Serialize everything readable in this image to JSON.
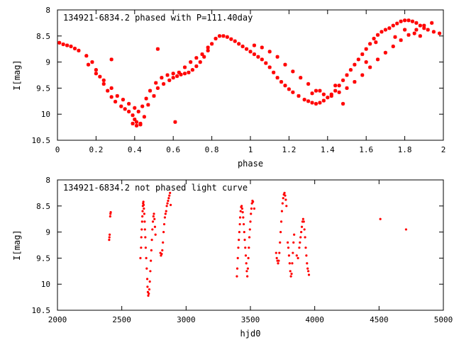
{
  "colors": {
    "points": "#ff0000",
    "axes": "#000000",
    "background": "#ffffff"
  },
  "chart_data": [
    {
      "type": "scatter",
      "title": "134921-6834.2 phased with P=111.40day",
      "xlabel": "phase",
      "ylabel": "I[mag]",
      "xlim": [
        0,
        2
      ],
      "ylim": [
        10.5,
        8
      ],
      "y_inverted": true,
      "grid": false,
      "marker": "star",
      "x_ticks": [
        "0",
        "0.2",
        "0.4",
        "0.6",
        "0.8",
        "1",
        "1.2",
        "1.4",
        "1.6",
        "1.8",
        "2"
      ],
      "y_ticks": [
        "8",
        "8.5",
        "9",
        "9.5",
        "10",
        "10.5"
      ],
      "x": [
        0.01,
        0.03,
        0.05,
        0.07,
        0.09,
        0.11,
        0.15,
        0.18,
        0.2,
        0.22,
        0.24,
        0.26,
        0.28,
        0.3,
        0.33,
        0.35,
        0.37,
        0.39,
        0.4,
        0.41,
        0.43,
        0.45,
        0.47,
        0.5,
        0.52,
        0.55,
        0.58,
        0.6,
        0.62,
        0.64,
        0.66,
        0.68,
        0.7,
        0.72,
        0.74,
        0.76,
        0.78,
        0.8,
        0.82,
        0.84,
        0.86,
        0.88,
        0.9,
        0.92,
        0.94,
        0.96,
        0.98,
        1.0,
        1.02,
        1.04,
        1.06,
        1.08,
        1.1,
        1.12,
        1.14,
        1.16,
        1.18,
        1.2,
        1.22,
        1.25,
        1.28,
        1.3,
        1.32,
        1.34,
        1.36,
        1.38,
        1.4,
        1.42,
        1.44,
        1.46,
        1.48,
        1.5,
        1.52,
        1.54,
        1.56,
        1.58,
        1.6,
        1.62,
        1.64,
        1.66,
        1.68,
        1.7,
        1.72,
        1.74,
        1.76,
        1.78,
        1.8,
        1.82,
        1.84,
        1.86,
        1.88,
        1.9,
        1.92,
        1.95,
        1.98,
        0.16,
        0.2,
        0.24,
        0.28,
        0.31,
        0.34,
        0.37,
        0.4,
        0.42,
        0.44,
        0.46,
        0.48,
        0.51,
        0.54,
        0.57,
        0.6,
        0.63,
        0.66,
        0.69,
        0.72,
        0.75,
        0.78,
        1.02,
        1.06,
        1.1,
        1.14,
        1.18,
        1.22,
        1.26,
        1.3,
        1.34,
        1.38,
        1.42,
        1.46,
        1.5,
        1.54,
        1.58,
        1.62,
        1.66,
        1.7,
        1.74,
        1.78,
        1.82,
        1.86,
        1.9,
        1.94,
        0.28,
        0.52,
        0.61,
        0.41,
        0.43,
        0.39,
        1.6,
        1.65,
        1.75,
        1.8,
        1.85,
        1.88,
        1.32,
        1.36,
        1.44,
        1.48
      ],
      "y": [
        8.63,
        8.66,
        8.68,
        8.7,
        8.74,
        8.78,
        8.88,
        9.0,
        9.15,
        9.28,
        9.42,
        9.55,
        9.67,
        9.76,
        9.85,
        9.9,
        9.95,
        10.02,
        10.1,
        10.15,
        10.18,
        10.05,
        9.82,
        9.65,
        9.5,
        9.42,
        9.35,
        9.3,
        9.27,
        9.24,
        9.22,
        9.2,
        9.15,
        9.08,
        9.0,
        8.9,
        8.78,
        8.65,
        8.55,
        8.5,
        8.5,
        8.52,
        8.56,
        8.6,
        8.65,
        8.7,
        8.75,
        8.8,
        8.85,
        8.9,
        8.95,
        9.02,
        9.1,
        9.2,
        9.3,
        9.38,
        9.45,
        9.52,
        9.58,
        9.65,
        9.72,
        9.75,
        9.78,
        9.8,
        9.78,
        9.74,
        9.68,
        9.62,
        9.55,
        9.45,
        9.35,
        9.25,
        9.15,
        9.05,
        8.95,
        8.85,
        8.75,
        8.65,
        8.55,
        8.48,
        8.42,
        8.38,
        8.35,
        8.3,
        8.26,
        8.22,
        8.2,
        8.2,
        8.22,
        8.25,
        8.3,
        8.35,
        8.38,
        8.42,
        8.45,
        9.05,
        9.22,
        9.35,
        9.5,
        9.65,
        9.72,
        9.8,
        9.88,
        9.95,
        9.85,
        9.7,
        9.55,
        9.4,
        9.3,
        9.25,
        9.22,
        9.2,
        9.1,
        9.0,
        8.92,
        8.85,
        8.72,
        8.68,
        8.72,
        8.8,
        8.9,
        9.05,
        9.18,
        9.3,
        9.42,
        9.55,
        9.62,
        9.65,
        9.58,
        9.5,
        9.38,
        9.25,
        9.1,
        8.95,
        8.82,
        8.7,
        8.58,
        8.48,
        8.38,
        8.3,
        8.25,
        8.95,
        8.75,
        10.15,
        10.22,
        10.2,
        10.18,
        9.0,
        8.62,
        8.52,
        8.38,
        8.45,
        8.5,
        9.6,
        9.55,
        9.45,
        9.8
      ]
    },
    {
      "type": "scatter",
      "title": "134921-6834.2 not phased light curve",
      "xlabel": "hjd0",
      "ylabel": "I[mag]",
      "xlim": [
        2000,
        5000
      ],
      "ylim": [
        10.5,
        8
      ],
      "y_inverted": true,
      "grid": false,
      "marker": "dot",
      "x_ticks": [
        "2000",
        "2500",
        "3000",
        "3500",
        "4000",
        "4500",
        "5000"
      ],
      "y_ticks": [
        "8",
        "8.5",
        "9",
        "9.5",
        "10",
        "10.5"
      ],
      "x": [
        2402,
        2404,
        2406,
        2410,
        2412,
        2414,
        2645,
        2650,
        2652,
        2655,
        2658,
        2660,
        2662,
        2664,
        2666,
        2668,
        2670,
        2672,
        2675,
        2678,
        2680,
        2683,
        2686,
        2690,
        2694,
        2698,
        2700,
        2703,
        2706,
        2710,
        2714,
        2718,
        2722,
        2726,
        2730,
        2734,
        2738,
        2742,
        2746,
        2750,
        2754,
        2758,
        2762,
        2800,
        2805,
        2810,
        2815,
        2820,
        2825,
        2830,
        2835,
        2840,
        2845,
        2850,
        2855,
        2860,
        2865,
        2870,
        2875,
        2880,
        3395,
        3398,
        3402,
        3406,
        3410,
        3414,
        3418,
        3420,
        3424,
        3428,
        3432,
        3436,
        3440,
        3444,
        3448,
        3452,
        3456,
        3460,
        3464,
        3468,
        3472,
        3476,
        3480,
        3484,
        3488,
        3492,
        3496,
        3500,
        3504,
        3508,
        3512,
        3516,
        3520,
        3530,
        3700,
        3705,
        3710,
        3715,
        3720,
        3725,
        3730,
        3735,
        3740,
        3745,
        3750,
        3755,
        3760,
        3765,
        3770,
        3775,
        3780,
        3790,
        3795,
        3800,
        3805,
        3810,
        3815,
        3820,
        3825,
        3830,
        3835,
        3840,
        3860,
        3870,
        3880,
        3885,
        3890,
        3895,
        3900,
        3905,
        3910,
        3915,
        3920,
        3925,
        3930,
        3935,
        3940,
        3945,
        3950,
        3955,
        4510,
        4710
      ],
      "y": [
        9.15,
        9.1,
        9.05,
        8.7,
        8.65,
        8.62,
        9.5,
        9.3,
        9.1,
        8.95,
        8.8,
        8.7,
        8.6,
        8.5,
        8.45,
        8.42,
        8.48,
        8.55,
        8.65,
        8.8,
        8.95,
        9.1,
        9.3,
        9.5,
        9.7,
        9.9,
        10.05,
        10.15,
        10.22,
        10.18,
        10.1,
        9.95,
        9.75,
        9.55,
        9.35,
        9.15,
        8.95,
        8.8,
        8.7,
        8.65,
        8.75,
        8.9,
        9.05,
        9.4,
        9.45,
        9.42,
        9.35,
        9.2,
        9.0,
        8.85,
        8.72,
        8.65,
        8.6,
        8.5,
        8.45,
        8.4,
        8.35,
        8.3,
        8.25,
        8.48,
        9.85,
        9.7,
        9.5,
        9.3,
        9.15,
        9.0,
        8.85,
        8.72,
        8.6,
        8.52,
        8.5,
        8.55,
        8.62,
        8.72,
        8.85,
        9.0,
        9.15,
        9.3,
        9.45,
        9.6,
        9.75,
        9.85,
        9.7,
        9.5,
        9.3,
        9.1,
        8.95,
        8.8,
        8.65,
        8.55,
        8.45,
        8.4,
        8.42,
        8.55,
        9.4,
        9.5,
        9.55,
        9.6,
        9.55,
        9.4,
        9.2,
        9.0,
        8.8,
        8.6,
        8.45,
        8.35,
        8.28,
        8.25,
        8.3,
        8.38,
        8.5,
        9.2,
        9.3,
        9.45,
        9.6,
        9.75,
        9.85,
        9.8,
        9.6,
        9.4,
        9.2,
        9.05,
        9.45,
        9.5,
        9.3,
        9.2,
        9.1,
        9.0,
        8.9,
        8.8,
        8.75,
        8.8,
        8.95,
        9.1,
        9.3,
        9.45,
        9.6,
        9.7,
        9.75,
        9.82,
        8.75,
        8.95
      ]
    }
  ]
}
